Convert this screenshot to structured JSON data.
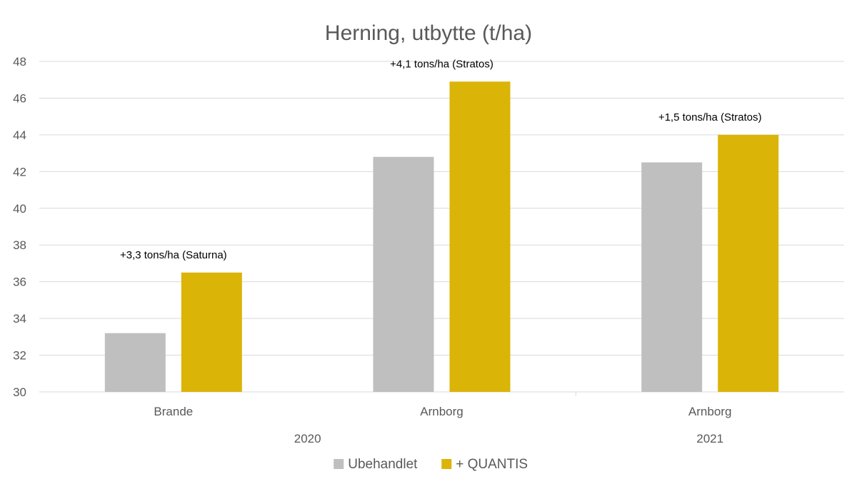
{
  "chart_data": {
    "type": "bar",
    "title": "Herning, utbytte (t/ha)",
    "xlabel": "",
    "ylabel": "",
    "ylim": [
      30,
      48
    ],
    "yticks": [
      30,
      32,
      34,
      36,
      38,
      40,
      42,
      44,
      46,
      48
    ],
    "categories": [
      "Brande",
      "Arnborg",
      "Arnborg"
    ],
    "groups": [
      {
        "label": "2020",
        "categories": [
          0,
          1
        ]
      },
      {
        "label": "2021",
        "categories": [
          2
        ]
      }
    ],
    "series": [
      {
        "name": "Ubehandlet",
        "color": "#bfbfbf",
        "values": [
          33.2,
          42.8,
          42.5
        ]
      },
      {
        "name": "+ QUANTIS",
        "color": "#dbb408",
        "values": [
          36.5,
          46.9,
          44.0
        ]
      }
    ],
    "annotations": [
      "+3,3 tons/ha (Saturna)",
      "+4,1 tons/ha (Stratos)",
      "+1,5 tons/ha (Stratos)"
    ],
    "grid": true,
    "legend": "bottom"
  }
}
